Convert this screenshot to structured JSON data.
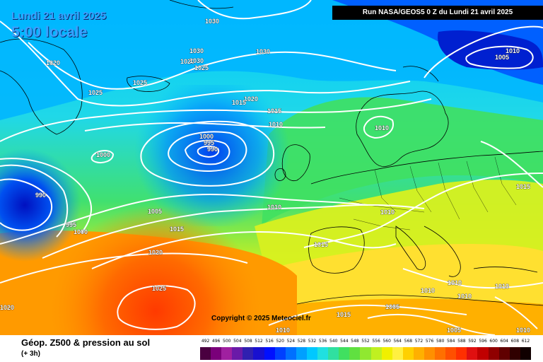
{
  "header": {
    "date_line": "Lundi 21 avril 2025",
    "time_line": "5:00 locale",
    "run_info": "Run NASA/GEOS5 0 Z du Lundi 21 avril 2025"
  },
  "copyright": "Copyright © 2025 Meteociel.fr",
  "footer": {
    "title": "Géop. Z500 & pression au sol",
    "subtitle": "(+ 3h)"
  },
  "scale": {
    "labels": [
      "492",
      "496",
      "500",
      "504",
      "508",
      "512",
      "516",
      "520",
      "524",
      "528",
      "532",
      "536",
      "540",
      "544",
      "548",
      "552",
      "556",
      "560",
      "564",
      "568",
      "572",
      "576",
      "580",
      "584",
      "588",
      "592",
      "596",
      "600",
      "604",
      "608",
      "612"
    ],
    "colors": [
      "#4a0040",
      "#7a007a",
      "#a020a0",
      "#6a1aa8",
      "#3020b0",
      "#1810d0",
      "#0010ff",
      "#0040ff",
      "#0070ff",
      "#00a0ff",
      "#00c8ff",
      "#20e0e0",
      "#30e0a0",
      "#40e060",
      "#60e040",
      "#90e830",
      "#c0f020",
      "#f0f000",
      "#fff040",
      "#ffd000",
      "#ffb000",
      "#ff9000",
      "#ff7000",
      "#ff5000",
      "#ff3000",
      "#e01010",
      "#c00000",
      "#900000",
      "#600000",
      "#300000",
      "#100000"
    ]
  },
  "isobars": [
    {
      "label": "1030",
      "pos": "top-greenland"
    },
    {
      "label": "1020",
      "pos": "greenland-west"
    },
    {
      "label": "1025",
      "pos": "greenland-south"
    },
    {
      "label": "1030",
      "pos": "iceland-1"
    },
    {
      "label": "1020",
      "pos": "iceland-2"
    },
    {
      "label": "1025",
      "pos": "iceland-3"
    },
    {
      "label": "1030",
      "pos": "iceland-4"
    },
    {
      "label": "1025",
      "pos": "iceland-5"
    },
    {
      "label": "1030",
      "pos": "norway-sea"
    },
    {
      "label": "1020",
      "pos": "faroe"
    },
    {
      "label": "1015",
      "pos": "faroe-2"
    },
    {
      "label": "1015",
      "pos": "north-sea"
    },
    {
      "label": "1010",
      "pos": "north-sea-2"
    },
    {
      "label": "1010",
      "pos": "scandinavia"
    },
    {
      "label": "1010",
      "pos": "barents"
    },
    {
      "label": "1005",
      "pos": "barents-2"
    },
    {
      "label": "1000",
      "pos": "atl-low-1"
    },
    {
      "label": "995",
      "pos": "atl-low-2"
    },
    {
      "label": "990",
      "pos": "atl-low-3"
    },
    {
      "label": "1000",
      "pos": "atl-west"
    },
    {
      "label": "990",
      "pos": "atl-sw"
    },
    {
      "label": "995",
      "pos": "atl-sw-2"
    },
    {
      "label": "1000",
      "pos": "atl-sw-3"
    },
    {
      "label": "1005",
      "pos": "atl-mid"
    },
    {
      "label": "1015",
      "pos": "atl-mid-2"
    },
    {
      "label": "1010",
      "pos": "bay-biscay"
    },
    {
      "label": "1010",
      "pos": "alps"
    },
    {
      "label": "1015",
      "pos": "france-south"
    },
    {
      "label": "1020",
      "pos": "azores-1"
    },
    {
      "label": "1025",
      "pos": "azores-2"
    },
    {
      "label": "1020",
      "pos": "sw-edge"
    },
    {
      "label": "1015",
      "pos": "russia"
    },
    {
      "label": "1010",
      "pos": "balkans-1"
    },
    {
      "label": "1010",
      "pos": "balkans-2"
    },
    {
      "label": "1010",
      "pos": "greece"
    },
    {
      "label": "1010",
      "pos": "turkey"
    },
    {
      "label": "1005",
      "pos": "med-south"
    },
    {
      "label": "1015",
      "pos": "africa-1"
    },
    {
      "label": "1010",
      "pos": "africa-2"
    },
    {
      "label": "1005",
      "pos": "africa-3"
    },
    {
      "label": "1010",
      "pos": "se-corner"
    }
  ]
}
